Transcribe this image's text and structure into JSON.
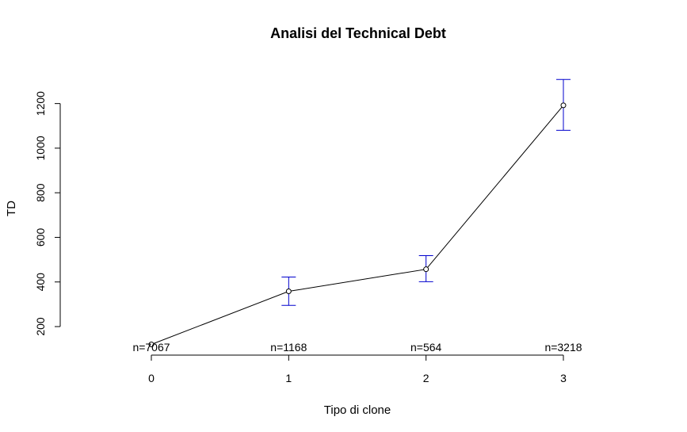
{
  "chart_data": {
    "type": "line",
    "title": "Analisi del Technical Debt",
    "xlabel": "Tipo di clone",
    "ylabel": "TD",
    "x": [
      0,
      1,
      2,
      3
    ],
    "x_tick_labels": [
      "0",
      "1",
      "2",
      "3"
    ],
    "series": [
      {
        "values": [
          120,
          358,
          457,
          1192
        ]
      }
    ],
    "error_bars": {
      "lower": [
        null,
        295,
        401,
        1080
      ],
      "upper": [
        null,
        422,
        518,
        1308
      ]
    },
    "counts": [
      "n=7067",
      "n=1168",
      "n=564",
      "n=3218"
    ],
    "y_ticks": [
      200,
      400,
      600,
      800,
      1000,
      1200
    ],
    "y_tick_labels": [
      "200",
      "400",
      "600",
      "800",
      "1000",
      "1200"
    ],
    "xlim": [
      0,
      3
    ],
    "ylim": [
      72,
      1380
    ],
    "grid": false,
    "legend": "none",
    "colors": {
      "line": "#000000",
      "error_bar": "#0000cd",
      "axis": "#000000"
    }
  }
}
